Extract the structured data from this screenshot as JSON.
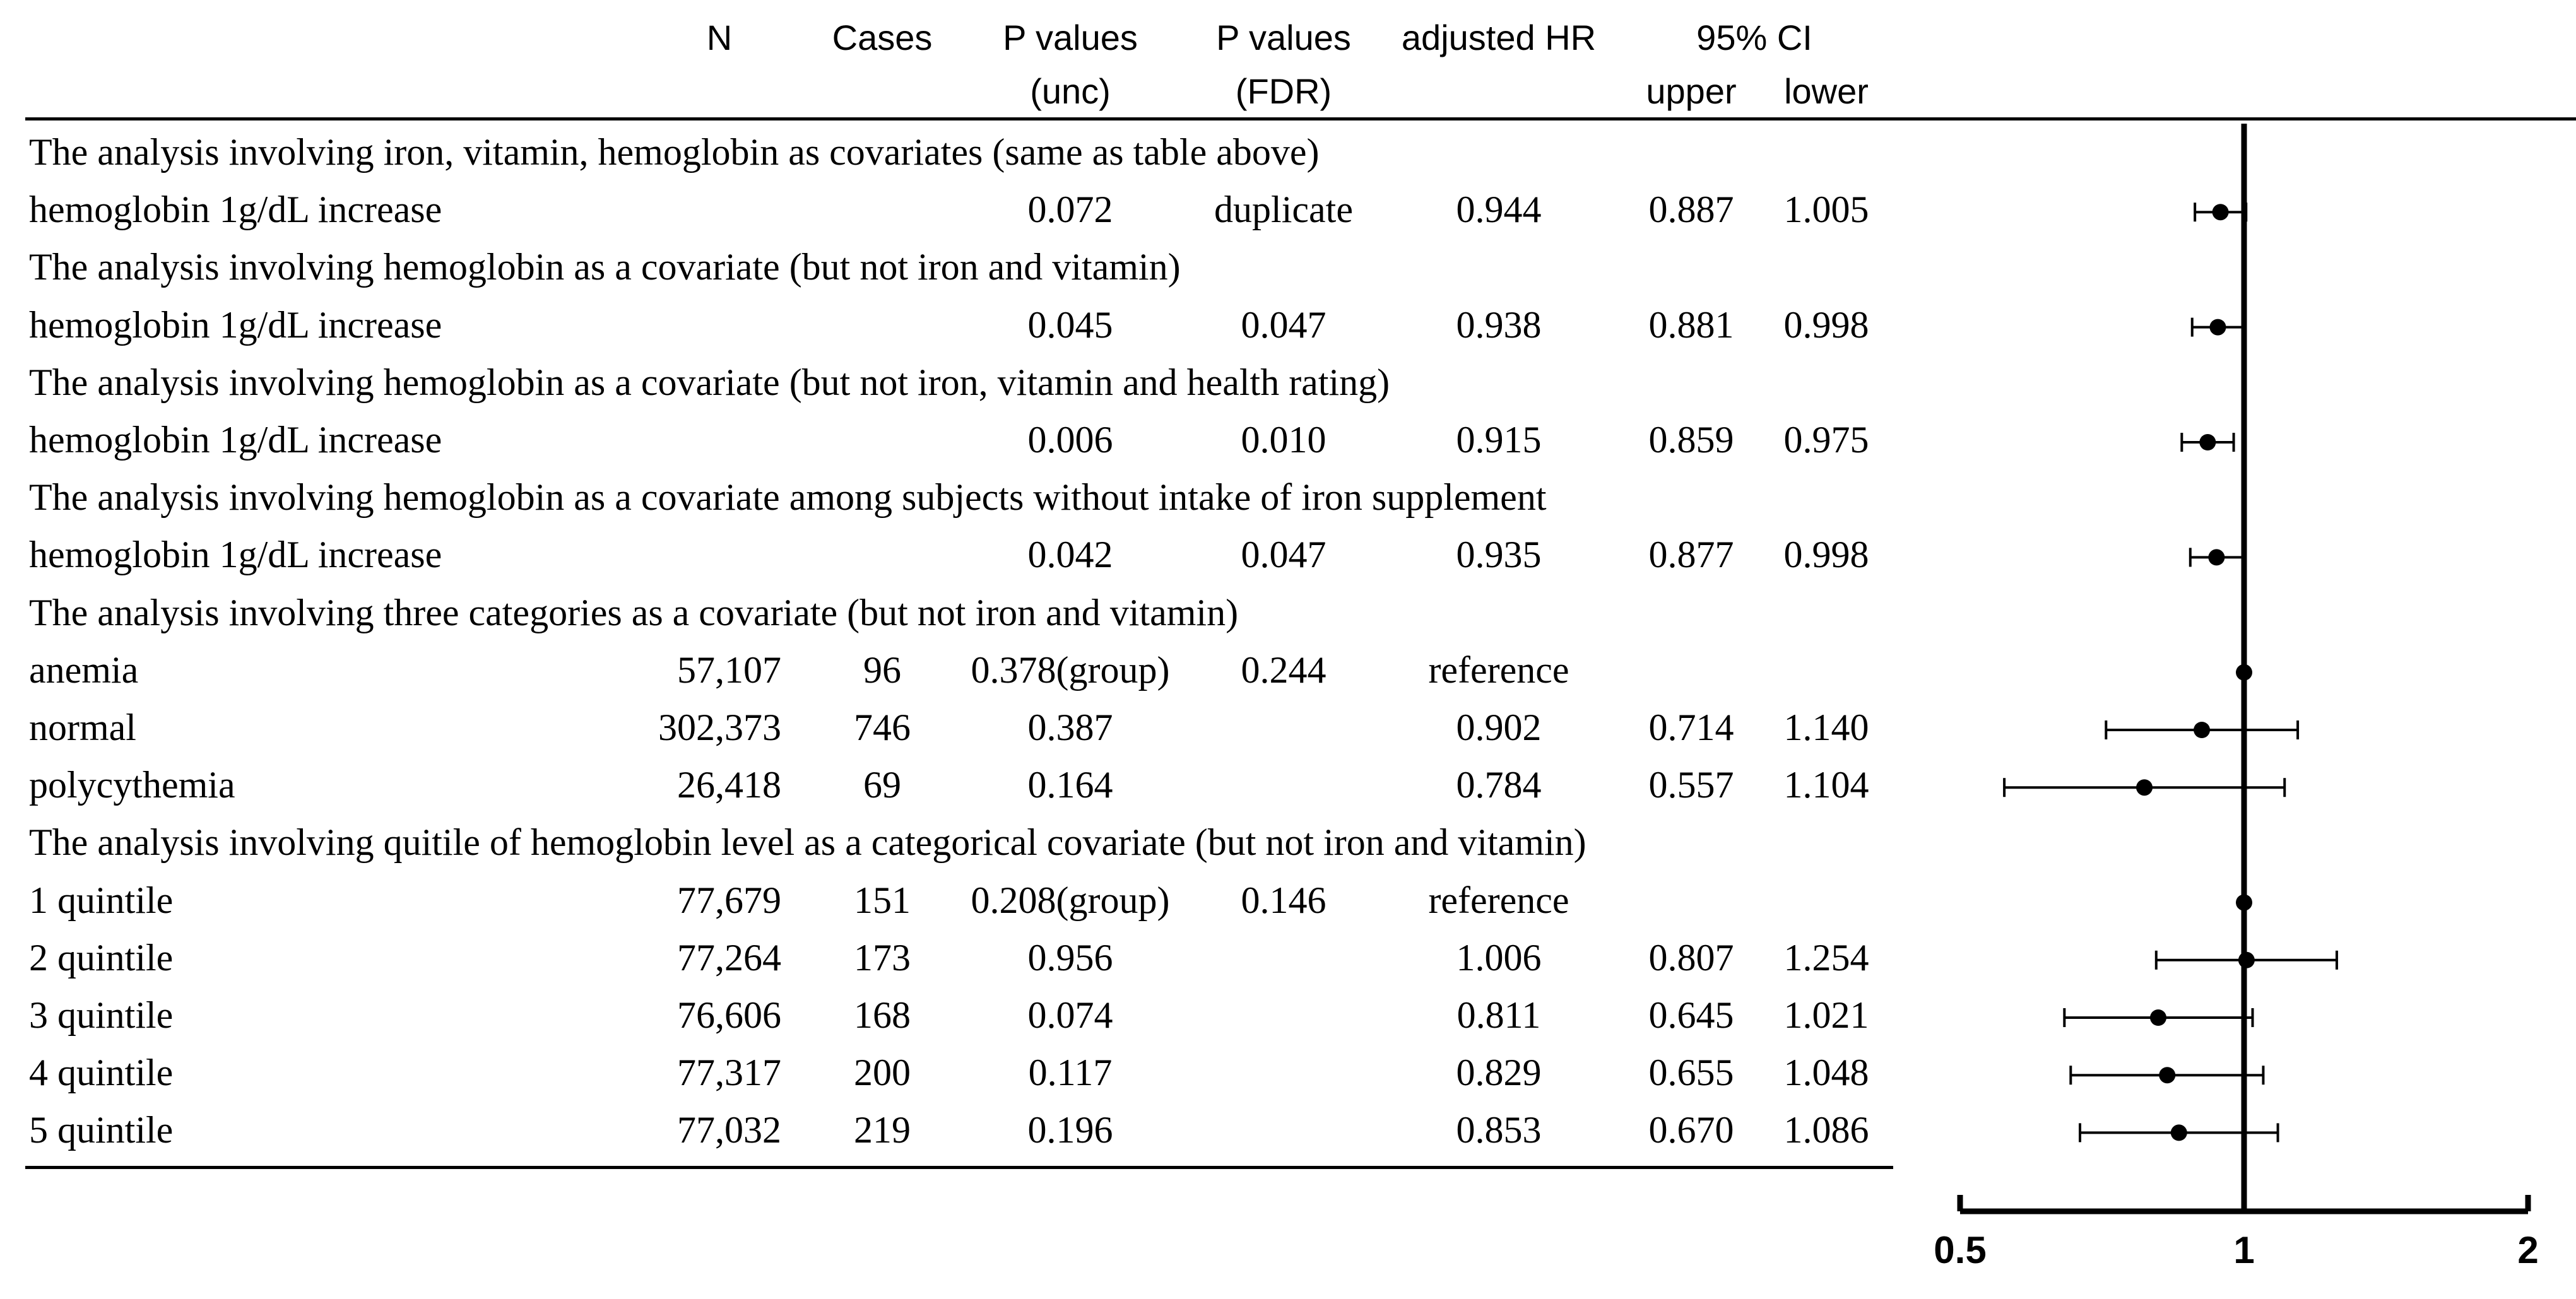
{
  "table": {
    "headers": {
      "n": "N",
      "cases": "Cases",
      "p_unc_line1": "P values",
      "p_unc_line2": "(unc)",
      "p_fdr_line1": "P values",
      "p_fdr_line2": "(FDR)",
      "hr": "adjusted HR",
      "ci": "95% CI",
      "ci_upper": "upper",
      "ci_lower": "lower"
    },
    "rows": [
      {
        "type": "section",
        "label": "The analysis involving iron, vitamin, hemoglobin as covariates (same as table above)"
      },
      {
        "type": "data",
        "label": "hemoglobin 1g/dL increase",
        "n": "",
        "cases": "",
        "p_unc": "0.072",
        "p_fdr": "duplicate",
        "hr": "0.944",
        "upper": "0.887",
        "lower": "1.005"
      },
      {
        "type": "section",
        "label": "The analysis involving hemoglobin as a covariate (but not iron and vitamin)"
      },
      {
        "type": "data",
        "label": "hemoglobin 1g/dL increase",
        "n": "",
        "cases": "",
        "p_unc": "0.045",
        "p_fdr": "0.047",
        "hr": "0.938",
        "upper": "0.881",
        "lower": "0.998"
      },
      {
        "type": "section",
        "label": "The analysis involving hemoglobin as a covariate (but not iron, vitamin and health rating)"
      },
      {
        "type": "data",
        "label": "hemoglobin 1g/dL increase",
        "n": "",
        "cases": "",
        "p_unc": "0.006",
        "p_fdr": "0.010",
        "hr": "0.915",
        "upper": "0.859",
        "lower": "0.975"
      },
      {
        "type": "section",
        "label": "The analysis involving hemoglobin as a covariate among subjects without intake of iron supplement"
      },
      {
        "type": "data",
        "label": "hemoglobin 1g/dL increase",
        "n": "",
        "cases": "",
        "p_unc": "0.042",
        "p_fdr": "0.047",
        "hr": "0.935",
        "upper": "0.877",
        "lower": "0.998"
      },
      {
        "type": "section",
        "label": "The analysis involving three categories as a covariate   (but not iron and vitamin)"
      },
      {
        "type": "data",
        "label": "anemia",
        "n": "57,107",
        "cases": "96",
        "p_unc": "0.378(group)",
        "p_fdr": "0.244",
        "hr": "reference",
        "upper": "",
        "lower": ""
      },
      {
        "type": "data",
        "label": "normal",
        "n": "302,373",
        "cases": "746",
        "p_unc": "0.387",
        "p_fdr": "",
        "hr": "0.902",
        "upper": "0.714",
        "lower": "1.140"
      },
      {
        "type": "data",
        "label": "polycythemia",
        "n": "26,418",
        "cases": "69",
        "p_unc": "0.164",
        "p_fdr": "",
        "hr": "0.784",
        "upper": "0.557",
        "lower": "1.104"
      },
      {
        "type": "section",
        "label": "The analysis involving quitile of hemoglobin level as a categorical covariate  (but not iron and vitamin)"
      },
      {
        "type": "data",
        "label": "1 quintile",
        "n": "77,679",
        "cases": "151",
        "p_unc": "0.208(group)",
        "p_fdr": "0.146",
        "hr": "reference",
        "upper": "",
        "lower": ""
      },
      {
        "type": "data",
        "label": "2 quintile",
        "n": "77,264",
        "cases": "173",
        "p_unc": "0.956",
        "p_fdr": "",
        "hr": "1.006",
        "upper": "0.807",
        "lower": "1.254"
      },
      {
        "type": "data",
        "label": "3 quintile",
        "n": "76,606",
        "cases": "168",
        "p_unc": "0.074",
        "p_fdr": "",
        "hr": "0.811",
        "upper": "0.645",
        "lower": "1.021"
      },
      {
        "type": "data",
        "label": "4 quintile",
        "n": "77,317",
        "cases": "200",
        "p_unc": "0.117",
        "p_fdr": "",
        "hr": "0.829",
        "upper": "0.655",
        "lower": "1.048"
      },
      {
        "type": "data",
        "label": "5 quintile",
        "n": "77,032",
        "cases": "219",
        "p_unc": "0.196",
        "p_fdr": "",
        "hr": "0.853",
        "upper": "0.670",
        "lower": "1.086"
      }
    ]
  },
  "chart_data": {
    "type": "forest",
    "title": "",
    "xlabel": "",
    "ylabel": "",
    "xlim": [
      0.5,
      2
    ],
    "xticks": [
      0.5,
      1,
      2
    ],
    "xtick_labels": [
      "0.5",
      "1",
      "2"
    ],
    "reference_line": 1,
    "grid": false,
    "points": [
      {
        "row": 1,
        "hr": 0.944,
        "ci_low": 0.887,
        "ci_high": 1.005
      },
      {
        "row": 3,
        "hr": 0.938,
        "ci_low": 0.881,
        "ci_high": 0.998
      },
      {
        "row": 5,
        "hr": 0.915,
        "ci_low": 0.859,
        "ci_high": 0.975
      },
      {
        "row": 7,
        "hr": 0.935,
        "ci_low": 0.877,
        "ci_high": 0.998
      },
      {
        "row": 9,
        "hr": 1.0,
        "ci_low": 1.0,
        "ci_high": 1.0
      },
      {
        "row": 10,
        "hr": 0.902,
        "ci_low": 0.714,
        "ci_high": 1.14
      },
      {
        "row": 11,
        "hr": 0.784,
        "ci_low": 0.557,
        "ci_high": 1.104
      },
      {
        "row": 13,
        "hr": 1.0,
        "ci_low": 1.0,
        "ci_high": 1.0
      },
      {
        "row": 14,
        "hr": 1.006,
        "ci_low": 0.807,
        "ci_high": 1.254
      },
      {
        "row": 15,
        "hr": 0.811,
        "ci_low": 0.645,
        "ci_high": 1.021
      },
      {
        "row": 16,
        "hr": 0.829,
        "ci_low": 0.655,
        "ci_high": 1.048
      },
      {
        "row": 17,
        "hr": 0.853,
        "ci_low": 0.67,
        "ci_high": 1.086
      }
    ]
  }
}
